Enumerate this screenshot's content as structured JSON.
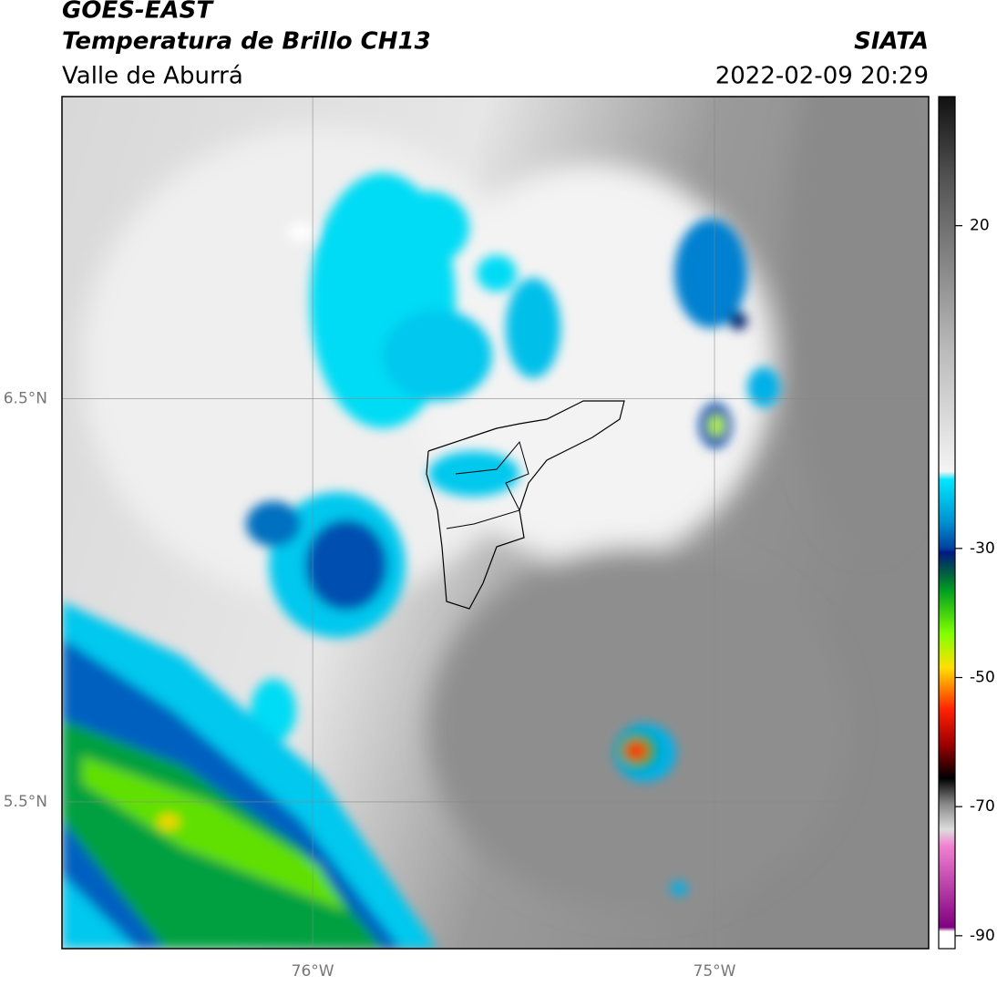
{
  "header": {
    "title": "GOES-EAST",
    "subtitle": "Temperatura de Brillo CH13",
    "region": "Valle de Aburrá",
    "source": "SIATA",
    "datetime": "2022-02-09 20:29"
  },
  "map": {
    "xlim": [
      -76.624,
      -74.467
    ],
    "ylim": [
      5.136,
      7.249
    ],
    "xticks": [
      {
        "value": -76,
        "label": "76°W"
      },
      {
        "value": -75,
        "label": "75°W"
      }
    ],
    "yticks": [
      {
        "value": 6.5,
        "label": "6.5°N"
      },
      {
        "value": 5.5,
        "label": "5.5°N"
      }
    ],
    "grid": true
  },
  "colorbar": {
    "lim": [
      -92,
      40
    ],
    "ticks": [
      20,
      -30,
      -50,
      -70,
      -90
    ]
  }
}
